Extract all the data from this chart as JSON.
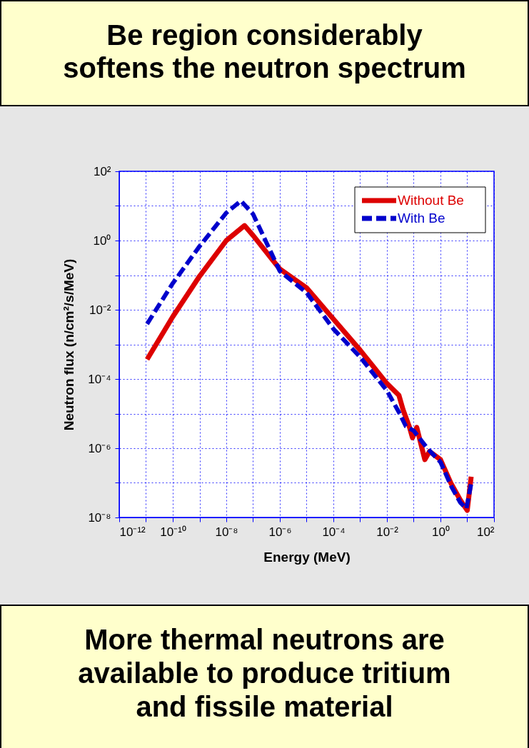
{
  "chart_data": {
    "type": "line",
    "title": "Be region considerably softens the neutron spectrum",
    "xlabel": "Energy (MeV)",
    "ylabel": "Neutron flux (n/cm²/s/MeV)",
    "annotations": [
      "More thermal neutrons are available to produce tritium and fissile material"
    ],
    "log": "xy",
    "grid": true,
    "legend": "top right",
    "xlim": [
      1e-12,
      100
    ],
    "ylim": [
      1e-08,
      100
    ],
    "xticks": [
      {
        "value": 1e-12,
        "label": "10⁻¹²"
      },
      {
        "value": 1e-11,
        "label": null
      },
      {
        "value": 1e-10,
        "label": "10⁻¹⁰"
      },
      {
        "value": 1e-09,
        "label": null
      },
      {
        "value": 1e-08,
        "label": "10⁻⁸"
      },
      {
        "value": 1e-07,
        "label": null
      },
      {
        "value": 1e-06,
        "label": "10⁻⁶"
      },
      {
        "value": 1e-05,
        "label": null
      },
      {
        "value": 0.0001,
        "label": "10⁻⁴"
      },
      {
        "value": 0.001,
        "label": null
      },
      {
        "value": 0.01,
        "label": "10⁻²"
      },
      {
        "value": 0.1,
        "label": null
      },
      {
        "value": 1,
        "label": "10⁰"
      },
      {
        "value": 10,
        "label": null
      },
      {
        "value": 100,
        "label": "10²"
      }
    ],
    "yticks": [
      {
        "value": 1e-08,
        "label": "10⁻⁸"
      },
      {
        "value": 1e-07,
        "label": null
      },
      {
        "value": 1e-06,
        "label": "10⁻⁶"
      },
      {
        "value": 1e-05,
        "label": null
      },
      {
        "value": 0.0001,
        "label": "10⁻⁴"
      },
      {
        "value": 0.001,
        "label": null
      },
      {
        "value": 0.01,
        "label": "10⁻²"
      },
      {
        "value": 0.1,
        "label": null
      },
      {
        "value": 1,
        "label": "10⁰"
      },
      {
        "value": 10,
        "label": null
      },
      {
        "value": 100,
        "label": "10²"
      }
    ],
    "series": [
      {
        "name": "Without Be",
        "color": "#dd0000",
        "line_style": "solid",
        "x": [
          1.1e-11,
          1e-10,
          1e-09,
          1e-08,
          4.8e-08,
          1e-07,
          1e-06,
          1e-05,
          0.0001,
          0.001,
          0.01,
          0.028,
          0.04,
          0.07,
          0.09,
          0.13,
          0.26,
          0.39,
          1,
          2.5,
          5.5,
          10,
          14
        ],
        "values": [
          0.00037,
          0.0063,
          0.093,
          1,
          2.7,
          1.4,
          0.15,
          0.043,
          0.0054,
          0.00068,
          7.4e-05,
          3.4e-05,
          1.3e-05,
          4e-06,
          2e-06,
          4e-06,
          4.7e-07,
          8.1e-07,
          4.7e-07,
          9.5e-08,
          3.2e-08,
          1.6e-08,
          1.5e-07
        ]
      },
      {
        "name": "With Be",
        "color": "#0000cc",
        "line_style": "dashed",
        "x": [
          1.1e-11,
          1e-10,
          1e-09,
          1e-08,
          3.5e-08,
          1e-07,
          1e-06,
          1e-05,
          0.0001,
          0.001,
          0.01,
          0.028,
          0.051,
          0.1,
          0.32,
          1,
          2.5,
          5.5,
          9.3,
          14
        ],
        "values": [
          0.0039,
          0.058,
          0.68,
          6.3,
          14,
          5.8,
          0.13,
          0.031,
          0.0028,
          0.00043,
          4.6e-05,
          1.1e-05,
          4.3e-06,
          3.2e-06,
          1e-06,
          4e-07,
          8.1e-08,
          2.7e-08,
          1.8e-08,
          9.5e-08
        ]
      }
    ]
  }
}
